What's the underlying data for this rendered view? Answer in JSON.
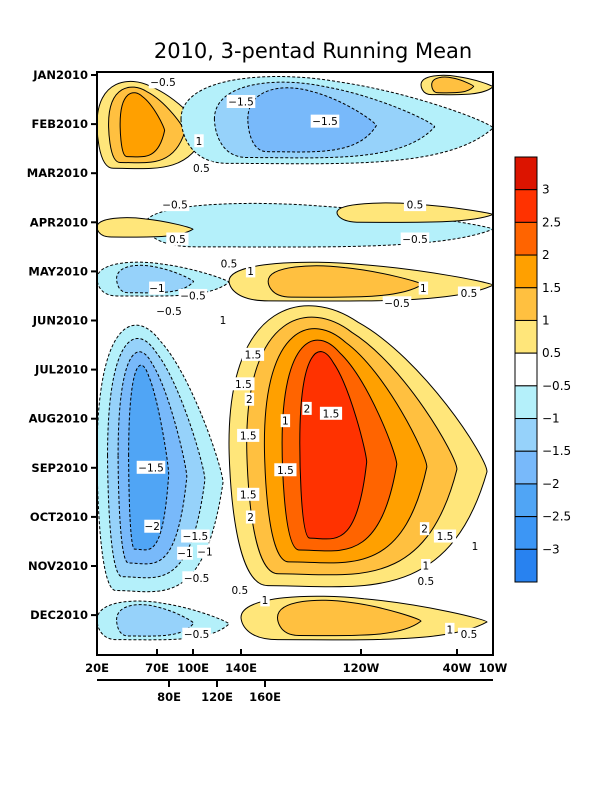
{
  "chart_data": {
    "type": "heatmap",
    "subtype": "filled-contour (Hovmoller time-longitude)",
    "title": "2010, 3-pentad Running Mean",
    "xlabel": "",
    "ylabel": "",
    "x_axis": {
      "range": [
        "20E",
        "10W"
      ],
      "range_deg_east": [
        20,
        350
      ],
      "primary_ticks": [
        {
          "label": "20E",
          "lon": 20
        },
        {
          "label": "70E",
          "lon": 70
        },
        {
          "label": "100E",
          "lon": 100
        },
        {
          "label": "140E",
          "lon": 140
        },
        {
          "label": "120W",
          "lon": 240
        },
        {
          "label": "40W",
          "lon": 320
        },
        {
          "label": "10W",
          "lon": 350
        }
      ],
      "secondary_ticks": [
        {
          "label": "80E",
          "lon": 80
        },
        {
          "label": "120E",
          "lon": 120
        },
        {
          "label": "160E",
          "lon": 160
        }
      ]
    },
    "y_axis": {
      "reversed": true,
      "range_months": [
        0,
        11.9
      ],
      "ticks": [
        {
          "label": "JAN2010",
          "month": 0
        },
        {
          "label": "FEB2010",
          "month": 1
        },
        {
          "label": "MAR2010",
          "month": 2
        },
        {
          "label": "APR2010",
          "month": 3
        },
        {
          "label": "MAY2010",
          "month": 4
        },
        {
          "label": "JUN2010",
          "month": 5
        },
        {
          "label": "JUL2010",
          "month": 6
        },
        {
          "label": "AUG2010",
          "month": 7
        },
        {
          "label": "SEP2010",
          "month": 8
        },
        {
          "label": "OCT2010",
          "month": 9
        },
        {
          "label": "NOV2010",
          "month": 10
        },
        {
          "label": "DEC2010",
          "month": 11
        }
      ]
    },
    "colorbar": {
      "placement": "right",
      "levels": [
        -3,
        -2.5,
        -2,
        -1.5,
        -1,
        -0.5,
        0.5,
        1,
        1.5,
        2,
        2.5,
        3
      ],
      "tick_labels": [
        "3",
        "2.5",
        "2",
        "1.5",
        "1",
        "0.5",
        "-0.5",
        "-1",
        "-1.5",
        "-2",
        "-2.5",
        "-3"
      ],
      "colors_top_to_bottom": [
        "#dc1400",
        "#ff3200",
        "#ff6400",
        "#ffa000",
        "#ffc040",
        "#ffe67a",
        "#ffffff",
        "#b4f0fa",
        "#96d2fa",
        "#78b9fa",
        "#50a5f5",
        "#3c96f5",
        "#2882f0"
      ]
    },
    "colors": {
      "pos_0.5": "#ffe67a",
      "pos_1": "#ffc040",
      "pos_1.5": "#ffa000",
      "pos_2": "#ff6400",
      "pos_2.5": "#ff3200",
      "pos_3": "#dc1400",
      "neg_0.5": "#b4f0fa",
      "neg_1": "#96d2fa",
      "neg_1.5": "#78b9fa",
      "neg_2": "#50a5f5",
      "neg_2.5": "#3c96f5",
      "neg_3": "#2882f0",
      "neutral": "#ffffff"
    },
    "anomaly_features": [
      {
        "name": "jan-feb warm 20E-110E",
        "sign": "positive",
        "peak": 1.5,
        "lon": [
          20,
          110
        ],
        "month": [
          0.1,
          1.9
        ]
      },
      {
        "name": "jan-feb cold 90E-350E",
        "sign": "negative",
        "peak": -1.5,
        "lon": [
          90,
          350
        ],
        "month": [
          0.0,
          1.8
        ]
      },
      {
        "name": "jan warm east pacific",
        "sign": "positive",
        "peak": 1,
        "lon": [
          290,
          350
        ],
        "month": [
          0.0,
          0.4
        ]
      },
      {
        "name": "apr cold",
        "sign": "negative",
        "peak": -0.5,
        "lon": [
          60,
          350
        ],
        "month": [
          2.6,
          3.5
        ]
      },
      {
        "name": "apr warm west",
        "sign": "positive",
        "peak": 0.5,
        "lon": [
          20,
          100
        ],
        "month": [
          2.9,
          3.3
        ]
      },
      {
        "name": "apr warm east",
        "sign": "positive",
        "peak": 0.5,
        "lon": [
          220,
          350
        ],
        "month": [
          2.6,
          3.0
        ]
      },
      {
        "name": "may warm",
        "sign": "positive",
        "peak": 1,
        "lon": [
          130,
          350
        ],
        "month": [
          3.8,
          4.6
        ]
      },
      {
        "name": "may cold west",
        "sign": "negative",
        "peak": -1,
        "lon": [
          20,
          130
        ],
        "month": [
          3.8,
          4.5
        ]
      },
      {
        "name": "jun-nov warm core",
        "sign": "positive",
        "peak": 2.5,
        "lon": [
          130,
          345
        ],
        "month": [
          4.6,
          10.4
        ]
      },
      {
        "name": "jul-oct cold west",
        "sign": "negative",
        "peak": -2,
        "lon": [
          20,
          125
        ],
        "month": [
          5.0,
          10.5
        ]
      },
      {
        "name": "dec warm",
        "sign": "positive",
        "peak": 1,
        "lon": [
          140,
          345
        ],
        "month": [
          10.6,
          11.5
        ]
      },
      {
        "name": "dec cold west",
        "sign": "negative",
        "peak": -1,
        "lon": [
          20,
          130
        ],
        "month": [
          10.7,
          11.5
        ]
      }
    ],
    "contour_labels": [
      {
        "text": "-0.5",
        "lon": 75,
        "month": 0.15
      },
      {
        "text": "-1.5",
        "lon": 140,
        "month": 0.55
      },
      {
        "text": "-1.5",
        "lon": 210,
        "month": 0.95
      },
      {
        "text": "1",
        "lon": 105,
        "month": 1.35
      },
      {
        "text": "0.5",
        "lon": 107,
        "month": 1.9
      },
      {
        "text": "-0.5",
        "lon": 85,
        "month": 2.65
      },
      {
        "text": "0.5",
        "lon": 285,
        "month": 2.65
      },
      {
        "text": "0.5",
        "lon": 87,
        "month": 3.35
      },
      {
        "text": "-0.5",
        "lon": 285,
        "month": 3.35
      },
      {
        "text": "0.5",
        "lon": 130,
        "month": 3.85
      },
      {
        "text": "1",
        "lon": 148,
        "month": 4.0
      },
      {
        "text": "-1",
        "lon": 70,
        "month": 4.35
      },
      {
        "text": "-0.5",
        "lon": 100,
        "month": 4.5
      },
      {
        "text": "1",
        "lon": 292,
        "month": 4.35
      },
      {
        "text": "0.5",
        "lon": 330,
        "month": 4.45
      },
      {
        "text": "-0.5",
        "lon": 80,
        "month": 4.65
      },
      {
        "text": "-0.5",
        "lon": 270,
        "month": 4.65
      },
      {
        "text": "1",
        "lon": 125,
        "month": 5.0
      },
      {
        "text": "1.5",
        "lon": 150,
        "month": 5.7
      },
      {
        "text": "1.5",
        "lon": 142,
        "month": 6.3
      },
      {
        "text": "2",
        "lon": 147,
        "month": 6.45
      },
      {
        "text": "2",
        "lon": 195,
        "month": 6.8
      },
      {
        "text": "1.5",
        "lon": 215,
        "month": 6.9
      },
      {
        "text": "1",
        "lon": 177,
        "month": 7.05
      },
      {
        "text": "1.5",
        "lon": 146,
        "month": 7.35
      },
      {
        "text": "1.5",
        "lon": 177,
        "month": 8.05
      },
      {
        "text": "-1.5",
        "lon": 65,
        "month": 8.0
      },
      {
        "text": "1.5",
        "lon": 146,
        "month": 8.55
      },
      {
        "text": "2",
        "lon": 148,
        "month": 8.85
      },
      {
        "text": "-2",
        "lon": 66,
        "month": 9.2
      },
      {
        "text": "-1.5",
        "lon": 102,
        "month": 9.4
      },
      {
        "text": "-1",
        "lon": 110,
        "month": 9.55
      },
      {
        "text": "-1",
        "lon": 100,
        "month": 9.75
      },
      {
        "text": "2",
        "lon": 293,
        "month": 9.25
      },
      {
        "text": "1.5",
        "lon": 310,
        "month": 9.4
      },
      {
        "text": "1",
        "lon": 335,
        "month": 9.6
      },
      {
        "text": "1",
        "lon": 294,
        "month": 10.0
      },
      {
        "text": "0.5",
        "lon": 294,
        "month": 10.15
      },
      {
        "text": "-0.5",
        "lon": 103,
        "month": 10.25
      },
      {
        "text": "0.5",
        "lon": 139,
        "month": 10.5
      },
      {
        "text": "1",
        "lon": 160,
        "month": 10.7
      },
      {
        "text": "1",
        "lon": 314,
        "month": 11.3
      },
      {
        "text": "0.5",
        "lon": 330,
        "month": 11.4
      },
      {
        "text": "-0.5",
        "lon": 103,
        "month": 11.4
      }
    ]
  }
}
